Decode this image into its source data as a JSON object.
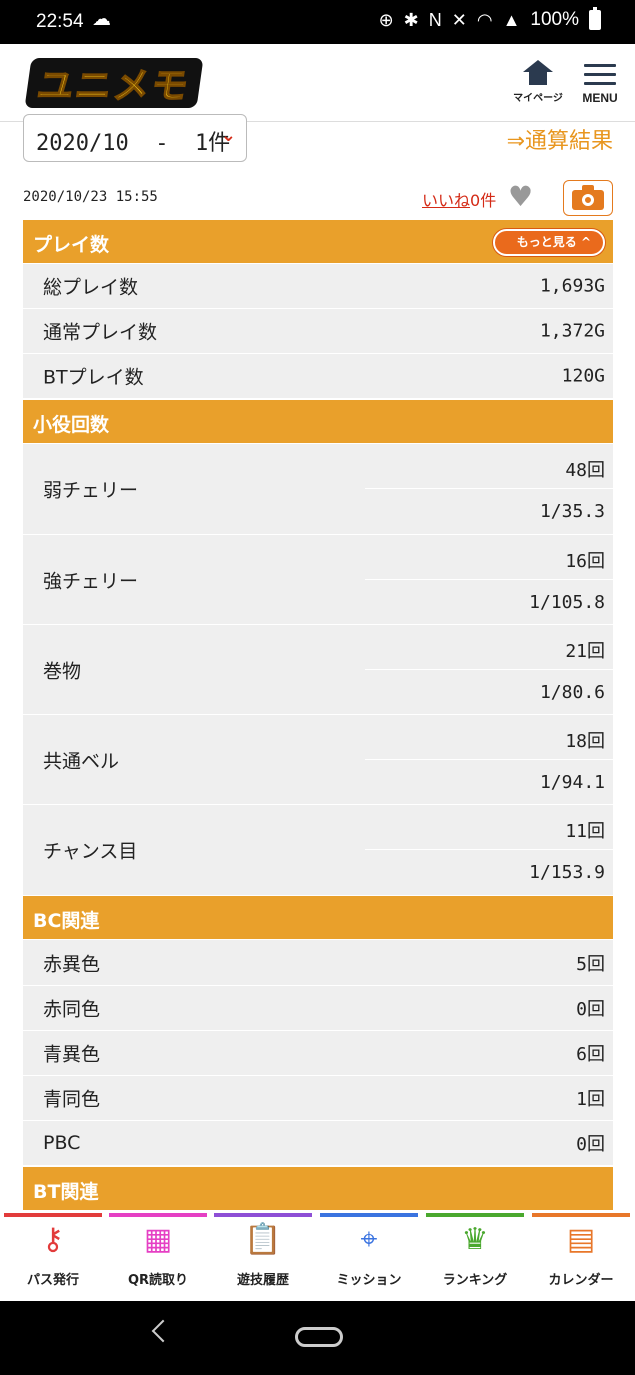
{
  "status_bar": {
    "time": "22:54",
    "battery": "100%"
  },
  "header": {
    "logo": "ユニメモ",
    "mypage_label": "マイページ",
    "menu_label": "MENU"
  },
  "selector": {
    "value": "2020/10  -  1件"
  },
  "total_link": "⇒通算結果",
  "entry": {
    "datetime": "2020/10/23 15:55",
    "like_link": "いいね",
    "like_count": "0件"
  },
  "sections": {
    "play": {
      "title": "プレイ数",
      "more_button": "もっと見る ^",
      "rows": [
        {
          "label": "総プレイ数",
          "value": "1,693G"
        },
        {
          "label": "通常プレイ数",
          "value": "1,372G"
        },
        {
          "label": "BTプレイ数",
          "value": "120G"
        }
      ]
    },
    "koyaku": {
      "title": "小役回数",
      "rows": [
        {
          "label": "弱チェリー",
          "count": "48回",
          "prob": "1/35.3"
        },
        {
          "label": "強チェリー",
          "count": "16回",
          "prob": "1/105.8"
        },
        {
          "label": "巻物",
          "count": "21回",
          "prob": "1/80.6"
        },
        {
          "label": "共通ベル",
          "count": "18回",
          "prob": "1/94.1"
        },
        {
          "label": "チャンス目",
          "count": "11回",
          "prob": "1/153.9"
        }
      ]
    },
    "bc": {
      "title": "BC関連",
      "rows": [
        {
          "label": "赤異色",
          "value": "5回"
        },
        {
          "label": "赤同色",
          "value": "0回"
        },
        {
          "label": "青異色",
          "value": "6回"
        },
        {
          "label": "青同色",
          "value": "1回"
        },
        {
          "label": "PBC",
          "value": "0回"
        }
      ]
    },
    "bt": {
      "title": "BT関連"
    }
  },
  "bottom_nav": [
    {
      "label": "パス発行",
      "color": "#e23b3b",
      "icon": "key-icon"
    },
    {
      "label": "QR読取り",
      "color": "#e53fc4",
      "icon": "qr-icon"
    },
    {
      "label": "遊技履歴",
      "color": "#8e4fd6",
      "icon": "clipboard-icon"
    },
    {
      "label": "ミッション",
      "color": "#3a73e0",
      "icon": "target-icon"
    },
    {
      "label": "ランキング",
      "color": "#4aa82e",
      "icon": "crown-icon"
    },
    {
      "label": "カレンダー",
      "color": "#e8772a",
      "icon": "calendar-icon"
    }
  ]
}
